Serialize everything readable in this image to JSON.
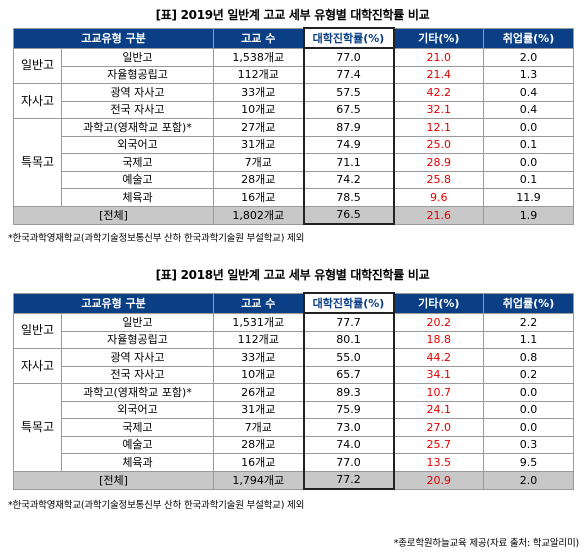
{
  "t1": {
    "title": "[표] 2019년 일반계 고교 세부 유형별 대학진학률 비교",
    "headers": [
      "고교유형 구분",
      "고교 수",
      "대학진학률(%)",
      "기타(%)",
      "취업률(%)"
    ],
    "groups": [
      "일반고",
      "자사고",
      "특목고"
    ],
    "rows": [
      [
        "일반고",
        "1,538개교",
        "77.0",
        "21.0",
        "2.0"
      ],
      [
        "자율형공립고",
        "112개교",
        "77.4",
        "21.4",
        "1.3"
      ],
      [
        "광역 자사고",
        "33개교",
        "57.5",
        "42.2",
        "0.4"
      ],
      [
        "전국 자사고",
        "10개교",
        "67.5",
        "32.1",
        "0.4"
      ],
      [
        "과학고(영재학교 포함)*",
        "27개교",
        "87.9",
        "12.1",
        "0.0"
      ],
      [
        "외국어고",
        "31개교",
        "74.9",
        "25.0",
        "0.1"
      ],
      [
        "국제고",
        "7개교",
        "71.1",
        "28.9",
        "0.0"
      ],
      [
        "예술고",
        "28개교",
        "74.2",
        "25.8",
        "0.1"
      ],
      [
        "체육과",
        "16개교",
        "78.5",
        "9.6",
        "11.9"
      ]
    ],
    "total": [
      "[전체]",
      "1,802개교",
      "76.5",
      "21.6",
      "1.9"
    ],
    "note": "*한국과학영재학교(과학기술정보통신부 산하 한국과학기술원 부설학교) 제외"
  },
  "t2": {
    "title": "[표] 2018년 일반계 고교 세부 유형별 대학진학률 비교",
    "headers": [
      "고교유형 구분",
      "고교 수",
      "대학진학률(%)",
      "기타(%)",
      "취업률(%)"
    ],
    "groups": [
      "일반고",
      "자사고",
      "특목고"
    ],
    "rows": [
      [
        "일반고",
        "1,531개교",
        "77.7",
        "20.2",
        "2.2"
      ],
      [
        "자율형공립고",
        "112개교",
        "80.1",
        "18.8",
        "1.1"
      ],
      [
        "광역 자사고",
        "33개교",
        "55.0",
        "44.2",
        "0.8"
      ],
      [
        "전국 자사고",
        "10개교",
        "65.7",
        "34.1",
        "0.2"
      ],
      [
        "과학고(영재학교 포함)*",
        "26개교",
        "89.3",
        "10.7",
        "0.0"
      ],
      [
        "외국어고",
        "31개교",
        "75.9",
        "24.1",
        "0.0"
      ],
      [
        "국제고",
        "7개교",
        "73.0",
        "27.0",
        "0.0"
      ],
      [
        "예술고",
        "28개교",
        "74.0",
        "25.7",
        "0.3"
      ],
      [
        "체육과",
        "16개교",
        "77.0",
        "13.5",
        "9.5"
      ]
    ],
    "total": [
      "[전체]",
      "1,794개교",
      "77.2",
      "20.9",
      "2.0"
    ],
    "note": "*한국과학영재학교(과학기술정보통신부 산하 한국과학기술원 부설학교) 제외"
  },
  "source": "*종로학원하늘교육 제공(자료 출처: 학교알리미)"
}
